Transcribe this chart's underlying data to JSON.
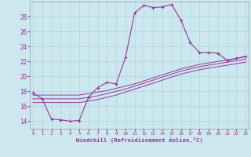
{
  "xlabel": "Windchill (Refroidissement éolien,°C)",
  "bg_color": "#cce8ee",
  "line_color": "#993399",
  "grid_color": "#aad8dd",
  "x_ticks": [
    0,
    1,
    2,
    3,
    4,
    5,
    6,
    7,
    8,
    9,
    10,
    11,
    12,
    13,
    14,
    15,
    16,
    17,
    18,
    19,
    20,
    21,
    22,
    23
  ],
  "y_ticks": [
    14,
    16,
    18,
    20,
    22,
    24,
    26,
    28
  ],
  "ylim": [
    13.0,
    30.0
  ],
  "xlim": [
    -0.3,
    23.3
  ],
  "series1_y": [
    17.8,
    17.0,
    14.3,
    14.2,
    14.0,
    14.1,
    17.2,
    18.5,
    19.2,
    19.0,
    22.5,
    28.5,
    29.5,
    29.2,
    29.3,
    29.6,
    27.5,
    24.5,
    23.2,
    23.2,
    23.1,
    22.1,
    22.4,
    22.7
  ],
  "series2_y": [
    17.5,
    17.5,
    17.5,
    17.5,
    17.5,
    17.5,
    17.7,
    17.9,
    18.1,
    18.4,
    18.7,
    19.0,
    19.4,
    19.8,
    20.2,
    20.6,
    21.0,
    21.3,
    21.6,
    21.8,
    22.0,
    22.2,
    22.4,
    22.6
  ],
  "series3_y": [
    17.0,
    17.0,
    17.0,
    17.0,
    17.0,
    17.0,
    17.2,
    17.4,
    17.7,
    18.0,
    18.3,
    18.7,
    19.1,
    19.5,
    19.9,
    20.3,
    20.7,
    21.0,
    21.3,
    21.5,
    21.7,
    21.9,
    22.1,
    22.3
  ],
  "series4_y": [
    16.5,
    16.5,
    16.5,
    16.5,
    16.5,
    16.5,
    16.7,
    16.9,
    17.2,
    17.5,
    17.9,
    18.3,
    18.7,
    19.1,
    19.5,
    19.9,
    20.3,
    20.6,
    20.9,
    21.1,
    21.3,
    21.5,
    21.7,
    21.9
  ]
}
